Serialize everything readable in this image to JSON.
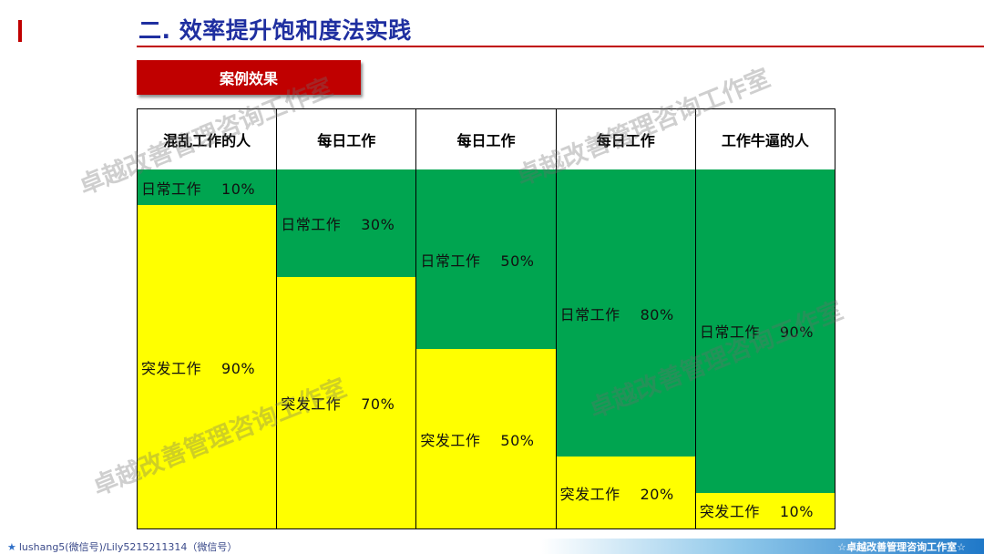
{
  "title": "二. 效率提升饱和度法实践",
  "case_label": "案例效果",
  "columns": [
    {
      "header": "混乱工作的人",
      "routine": {
        "label": "日常工作",
        "pct": "10%",
        "value": 10
      },
      "sudden": {
        "label": "突发工作",
        "pct": "90%",
        "value": 90
      }
    },
    {
      "header": "每日工作",
      "routine": {
        "label": "日常工作",
        "pct": "30%",
        "value": 30
      },
      "sudden": {
        "label": "突发工作",
        "pct": "70%",
        "value": 70
      }
    },
    {
      "header": "每日工作",
      "routine": {
        "label": "日常工作",
        "pct": "50%",
        "value": 50
      },
      "sudden": {
        "label": "突发工作",
        "pct": "50%",
        "value": 50
      }
    },
    {
      "header": "每日工作",
      "routine": {
        "label": "日常工作",
        "pct": "80%",
        "value": 80
      },
      "sudden": {
        "label": "突发工作",
        "pct": "20%",
        "value": 20
      }
    },
    {
      "header": "工作牛逼的人",
      "routine": {
        "label": "日常工作",
        "pct": "90%",
        "value": 90
      },
      "sudden": {
        "label": "突发工作",
        "pct": "10%",
        "value": 10
      }
    }
  ],
  "colors": {
    "routine": "#00a550",
    "sudden": "#ffff00",
    "title": "#1f2fa0",
    "accent": "#c00000"
  },
  "watermark": "卓越改善管理咨询工作室",
  "footer": {
    "star_icon": "star-icon",
    "left": "lushang5(微信号)/Lily5215211314（微信号）",
    "right": "☆卓越改善管理咨询工作室☆"
  }
}
